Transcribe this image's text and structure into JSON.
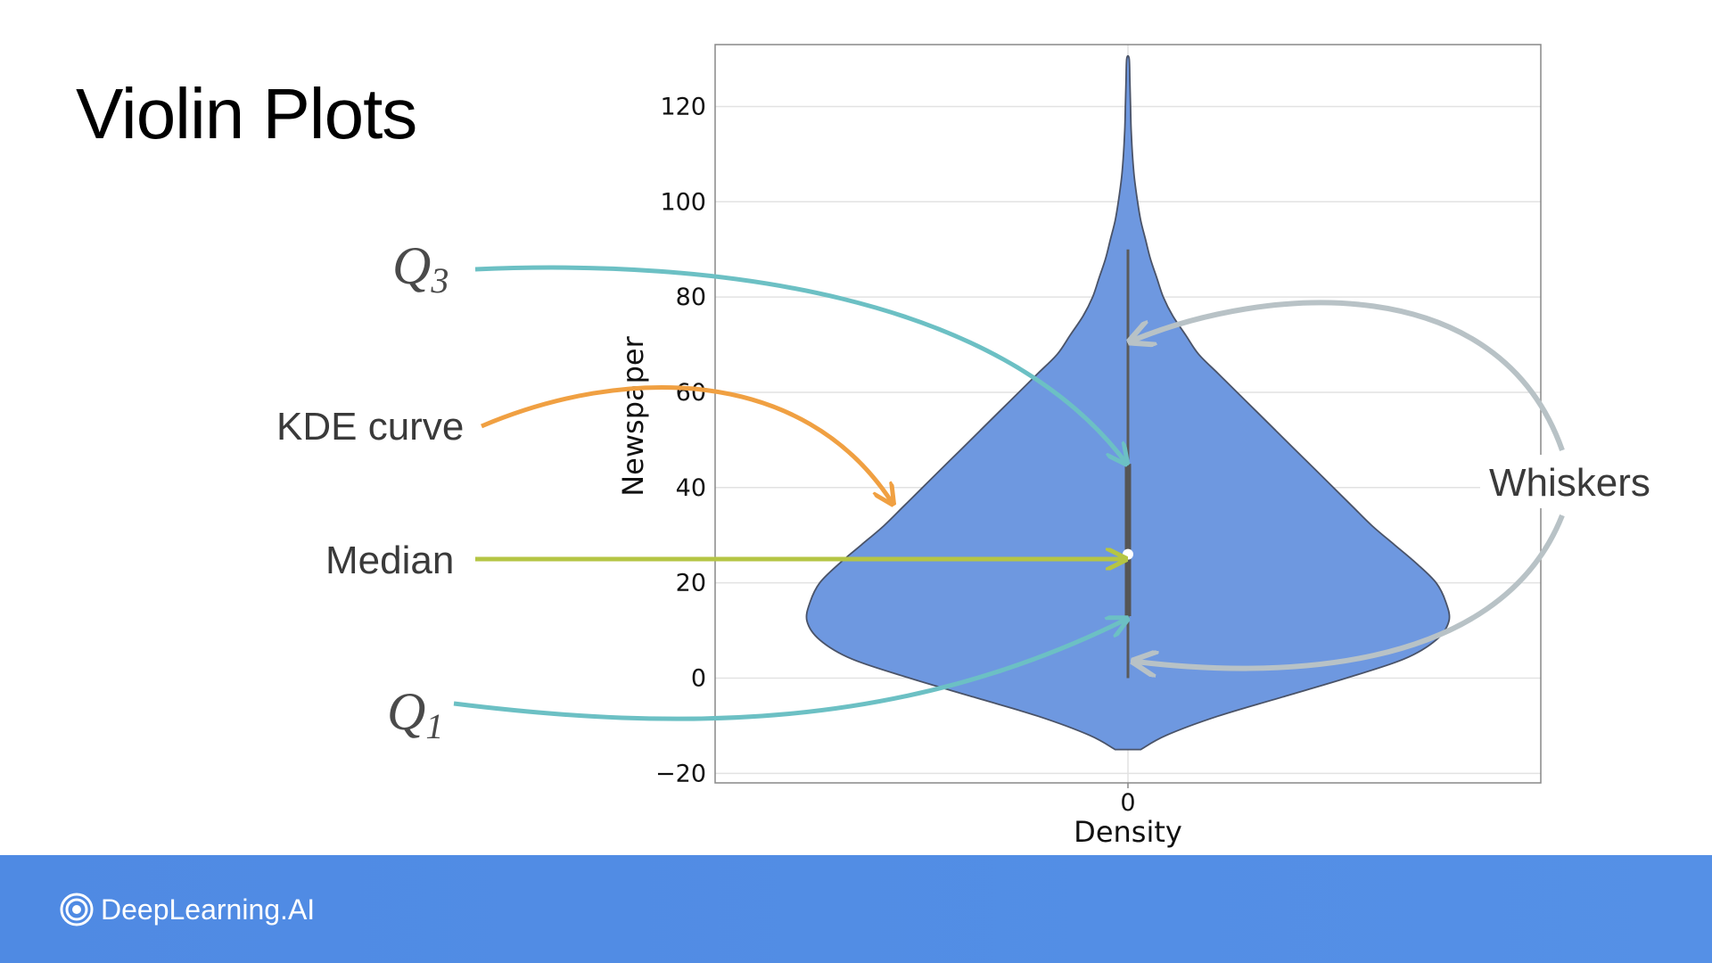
{
  "slide": {
    "title": "Violin Plots"
  },
  "brand": {
    "name": "DeepLearning.AI"
  },
  "annotations": {
    "q3": {
      "letter": "Q",
      "sub": "3"
    },
    "q1": {
      "letter": "Q",
      "sub": "1"
    },
    "kde": "KDE curve",
    "median": "Median",
    "whiskers": "Whiskers"
  },
  "colors": {
    "violin_fill": "#6e98e0",
    "violin_edge": "#4a5368",
    "q_arrow": "#6cc0c4",
    "kde_arrow": "#f0a042",
    "median_arrow": "#b5c544",
    "whisker_arrow": "#b8c2c6",
    "footer": "#5590e6"
  },
  "chart_data": {
    "type": "violin",
    "xlabel": "Density",
    "ylabel": "Newspaper",
    "x_tick_labels": [
      "0"
    ],
    "y_ticks": [
      -20,
      0,
      20,
      40,
      60,
      80,
      100,
      120
    ],
    "ylim": [
      -22,
      133
    ],
    "grid": true,
    "stats": {
      "median": 26,
      "q1": 13,
      "q3": 45,
      "whisker_low": 0,
      "whisker_high": 90,
      "min_extent": -15,
      "max_extent": 130
    },
    "density_profile": {
      "y": [
        -15,
        -12,
        -8,
        -4,
        0,
        4,
        8,
        12,
        16,
        20,
        24,
        28,
        32,
        36,
        40,
        44,
        48,
        52,
        56,
        60,
        64,
        68,
        72,
        76,
        80,
        84,
        88,
        92,
        96,
        100,
        105,
        110,
        115,
        120,
        125,
        130
      ],
      "width": [
        0.04,
        0.12,
        0.28,
        0.48,
        0.68,
        0.86,
        0.96,
        1.0,
        0.99,
        0.96,
        0.9,
        0.83,
        0.76,
        0.7,
        0.64,
        0.58,
        0.52,
        0.46,
        0.4,
        0.34,
        0.28,
        0.22,
        0.18,
        0.14,
        0.11,
        0.09,
        0.07,
        0.055,
        0.04,
        0.03,
        0.02,
        0.014,
        0.01,
        0.008,
        0.006,
        0.004
      ]
    }
  }
}
